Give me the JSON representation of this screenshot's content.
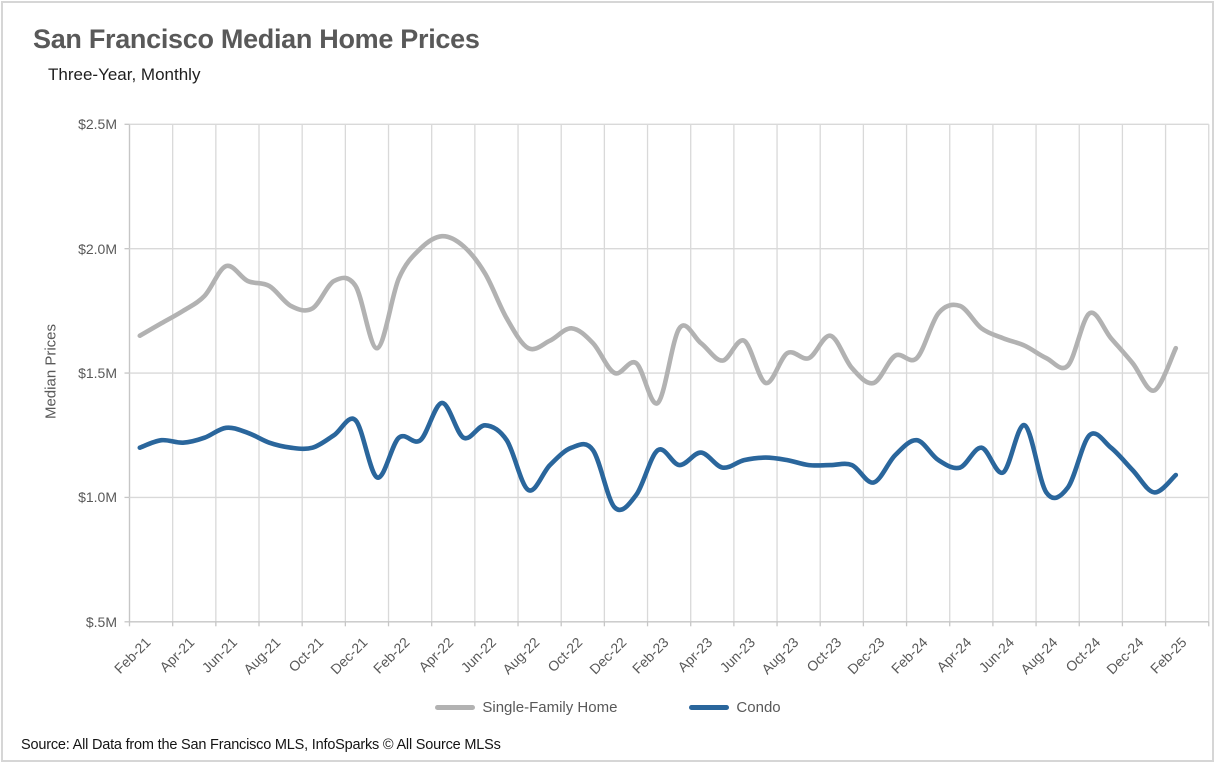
{
  "header": {
    "title": "San Francisco Median Home Prices",
    "subtitle": "Three-Year, Monthly"
  },
  "y_axis": {
    "label": "Median Prices"
  },
  "legend": [
    {
      "label": "Single-Family Home",
      "color": "#b2b2b2"
    },
    {
      "label": "Condo",
      "color": "#2a669c"
    }
  ],
  "footer": {
    "source": "Source: All Data from the San Francisco MLS, InfoSparks © All Source MLSs"
  },
  "colors": {
    "gridline": "#d9d9d9",
    "axis_line": "#c6c6c6",
    "tick_mark": "#c6c6c6",
    "title_text": "#595959",
    "axis_text": "#595959",
    "single_family_line": "#b2b2b2",
    "condo_line": "#2a669c"
  },
  "chart_data": {
    "type": "line",
    "title": "San Francisco Median Home Prices",
    "subtitle": "Three-Year, Monthly",
    "xlabel": "",
    "ylabel": "Median Prices",
    "unit": "millions of dollars",
    "ylim": [
      0.5,
      2.5
    ],
    "grid": true,
    "smooth": true,
    "legend_position": "bottom",
    "y_ticks": [
      {
        "label": "$2.5M",
        "value": 2.5
      },
      {
        "label": "$2.0M",
        "value": 2.0
      },
      {
        "label": "$1.5M",
        "value": 1.5
      },
      {
        "label": "$1.0M",
        "value": 1.0
      },
      {
        "label": "$.5M",
        "value": 0.5
      }
    ],
    "xtick_every": 2,
    "categories": [
      "Feb-21",
      "Mar-21",
      "Apr-21",
      "May-21",
      "Jun-21",
      "Jul-21",
      "Aug-21",
      "Sep-21",
      "Oct-21",
      "Nov-21",
      "Dec-21",
      "Jan-22",
      "Feb-22",
      "Mar-22",
      "Apr-22",
      "May-22",
      "Jun-22",
      "Jul-22",
      "Aug-22",
      "Sep-22",
      "Oct-22",
      "Nov-22",
      "Dec-22",
      "Jan-23",
      "Feb-23",
      "Mar-23",
      "Apr-23",
      "May-23",
      "Jun-23",
      "Jul-23",
      "Aug-23",
      "Sep-23",
      "Oct-23",
      "Nov-23",
      "Dec-23",
      "Jan-24",
      "Feb-24",
      "Mar-24",
      "Apr-24",
      "May-24",
      "Jun-24",
      "Jul-24",
      "Aug-24",
      "Sep-24",
      "Oct-24",
      "Nov-24",
      "Dec-24",
      "Jan-25",
      "Feb-25"
    ],
    "series": [
      {
        "name": "Single-Family Home",
        "color": "#b2b2b2",
        "values": [
          1.65,
          1.7,
          1.75,
          1.81,
          1.93,
          1.87,
          1.85,
          1.77,
          1.76,
          1.87,
          1.85,
          1.6,
          1.88,
          2.0,
          2.05,
          2.01,
          1.9,
          1.72,
          1.6,
          1.63,
          1.68,
          1.62,
          1.5,
          1.54,
          1.38,
          1.68,
          1.62,
          1.55,
          1.63,
          1.46,
          1.58,
          1.56,
          1.65,
          1.52,
          1.46,
          1.57,
          1.56,
          1.74,
          1.77,
          1.68,
          1.64,
          1.61,
          1.56,
          1.53,
          1.74,
          1.64,
          1.54,
          1.43,
          1.6
        ]
      },
      {
        "name": "Condo",
        "color": "#2a669c",
        "values": [
          1.2,
          1.23,
          1.22,
          1.24,
          1.28,
          1.26,
          1.22,
          1.2,
          1.2,
          1.25,
          1.31,
          1.08,
          1.24,
          1.23,
          1.38,
          1.24,
          1.29,
          1.23,
          1.03,
          1.13,
          1.2,
          1.19,
          0.96,
          1.01,
          1.19,
          1.13,
          1.18,
          1.12,
          1.15,
          1.16,
          1.15,
          1.13,
          1.13,
          1.13,
          1.06,
          1.17,
          1.23,
          1.15,
          1.12,
          1.2,
          1.1,
          1.29,
          1.02,
          1.04,
          1.25,
          1.2,
          1.11,
          1.02,
          1.09
        ]
      }
    ]
  }
}
